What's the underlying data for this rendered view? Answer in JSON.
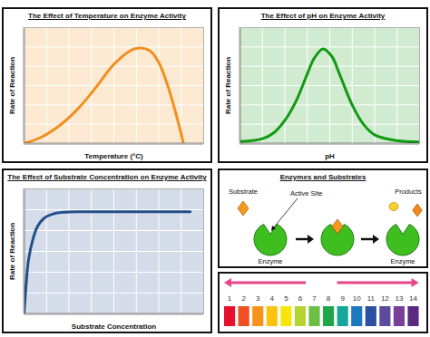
{
  "chart_data": [
    {
      "type": "line",
      "title": "The Effect of Temperature on Enzyme Activity",
      "xlabel": "Temperature (°C)",
      "ylabel": "Rate of Reaction",
      "x": [
        0,
        0.8,
        1.6,
        2.4,
        3.2,
        4,
        4.8,
        5.2,
        5.6,
        6,
        6.4,
        6.8,
        7.1
      ],
      "values": [
        0,
        0.35,
        0.95,
        1.8,
        2.9,
        4.1,
        4.85,
        4.95,
        4.8,
        4.2,
        3,
        1.4,
        0
      ],
      "color": "#f0901e",
      "xlim": [
        0,
        8
      ],
      "ylim": [
        0,
        6
      ],
      "xticks": [
        0,
        1,
        2,
        3,
        4,
        5,
        6,
        7,
        8
      ],
      "yticks": [
        0,
        1,
        2,
        3,
        4,
        5,
        6
      ],
      "grid": true,
      "tick_labels": false
    },
    {
      "type": "line",
      "title": "The Effect of pH on Enzyme Activity",
      "xlabel": "pH",
      "ylabel": "Rate of Reaction",
      "x": [
        0,
        1,
        1.5,
        2,
        2.5,
        3,
        3.3,
        3.7,
        4.1,
        4.4,
        5,
        5.5,
        6,
        7,
        8
      ],
      "values": [
        0.1,
        0.25,
        0.55,
        1.2,
        2.2,
        3.6,
        4.4,
        4.9,
        4.5,
        3.7,
        2,
        1,
        0.45,
        0.15,
        0.08
      ],
      "color": "#129a12",
      "xlim": [
        0,
        8
      ],
      "ylim": [
        0,
        6
      ],
      "xticks": [
        0,
        1,
        2,
        3,
        4,
        5,
        6,
        7,
        8
      ],
      "yticks": [
        0,
        1,
        2,
        3,
        4,
        5,
        6
      ],
      "grid": true,
      "tick_labels": false
    },
    {
      "type": "line",
      "title": "The Effect of Substrate Concentration on Enzyme Activity",
      "xlabel": "Substrate Concentration",
      "ylabel": "Rate of Reaction",
      "x": [
        0,
        0.1,
        0.2,
        0.4,
        0.6,
        0.9,
        1.3,
        1.8,
        2.5,
        3.5,
        7.4
      ],
      "values": [
        0,
        1.5,
        2.6,
        3.6,
        4.2,
        4.6,
        4.8,
        4.88,
        4.9,
        4.9,
        4.9
      ],
      "color": "#234f8a",
      "xlim": [
        0,
        8
      ],
      "ylim": [
        0,
        6
      ],
      "xticks": [
        0,
        1,
        2,
        3,
        4,
        5,
        6,
        7,
        8
      ],
      "yticks": [
        0,
        1,
        2,
        3,
        4,
        5,
        6
      ],
      "grid": true,
      "tick_labels": false
    }
  ],
  "diagram": {
    "title": "Enzymes and Substrates",
    "substrate": "Substrate",
    "active_site": "Active Site",
    "products": "Products",
    "enzyme_labels": [
      "Enzyme",
      "Enzyme"
    ]
  },
  "ph_scale": {
    "labels": [
      1,
      2,
      3,
      4,
      5,
      6,
      7,
      8,
      9,
      10,
      11,
      12,
      13,
      14
    ],
    "colors": [
      "#e8112d",
      "#f04e23",
      "#f7931d",
      "#fdc20e",
      "#f5e50b",
      "#b5d334",
      "#6cbe45",
      "#1fa64a",
      "#15a59a",
      "#1c79c0",
      "#2c4fa1",
      "#5b4b9f",
      "#7a3f98",
      "#5a2a82"
    ]
  }
}
